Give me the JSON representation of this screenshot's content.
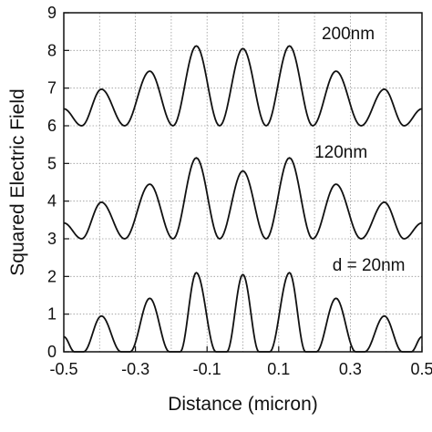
{
  "chart_data": {
    "type": "line",
    "xlabel": "Distance (micron)",
    "ylabel": "Squared Electric Field",
    "xlim": [
      -0.5,
      0.5
    ],
    "ylim": [
      0,
      9
    ],
    "xticks": [
      -0.5,
      -0.3,
      -0.1,
      0.1,
      0.3,
      0.5
    ],
    "xtick_labels": [
      "-0.5",
      "-0.3",
      "-0.1",
      "0.1",
      "0.3",
      "0.5"
    ],
    "yticks": [
      0,
      1,
      2,
      3,
      4,
      5,
      6,
      7,
      8,
      9
    ],
    "ytick_labels": [
      "0",
      "1",
      "2",
      "3",
      "4",
      "5",
      "6",
      "7",
      "8",
      "9"
    ],
    "grid": true,
    "line_color": "#111111",
    "grid_color": "#9a9a9a",
    "series": [
      {
        "name": "d=20nm",
        "x": [
          -0.5,
          -0.47,
          -0.445,
          -0.395,
          -0.34,
          -0.315,
          -0.26,
          -0.205,
          -0.175,
          -0.13,
          -0.075,
          -0.045,
          0.0,
          0.045,
          0.075,
          0.13,
          0.175,
          0.205,
          0.26,
          0.315,
          0.34,
          0.395,
          0.445,
          0.47,
          0.5
        ],
        "y": [
          0.4,
          0.0,
          0.0,
          0.95,
          0.0,
          0.0,
          1.42,
          0.0,
          0.0,
          2.1,
          0.0,
          0.0,
          2.05,
          0.0,
          0.0,
          2.1,
          0.0,
          0.0,
          1.42,
          0.0,
          0.0,
          0.95,
          0.0,
          0.0,
          0.4
        ]
      },
      {
        "name": "120nm",
        "x": [
          -0.5,
          -0.45,
          -0.395,
          -0.33,
          -0.26,
          -0.195,
          -0.13,
          -0.065,
          0.0,
          0.065,
          0.13,
          0.195,
          0.26,
          0.33,
          0.395,
          0.45,
          0.5
        ],
        "y": [
          3.42,
          3.0,
          3.97,
          3.0,
          4.45,
          3.0,
          5.15,
          3.0,
          4.8,
          3.0,
          5.15,
          3.0,
          4.45,
          3.0,
          3.97,
          3.0,
          3.42
        ]
      },
      {
        "name": "200nm",
        "x": [
          -0.5,
          -0.45,
          -0.395,
          -0.33,
          -0.26,
          -0.195,
          -0.13,
          -0.065,
          0.0,
          0.065,
          0.13,
          0.195,
          0.26,
          0.33,
          0.395,
          0.45,
          0.5
        ],
        "y": [
          6.45,
          6.0,
          6.97,
          6.0,
          7.45,
          6.0,
          8.12,
          6.0,
          8.05,
          6.0,
          8.12,
          6.0,
          7.45,
          6.0,
          6.97,
          6.0,
          6.45
        ]
      }
    ],
    "annotations": [
      {
        "text": "200nm",
        "x": 0.22,
        "y": 8.3
      },
      {
        "text": "120nm",
        "x": 0.2,
        "y": 5.15
      },
      {
        "text": "d = 20nm",
        "x": 0.25,
        "y": 2.15
      }
    ]
  }
}
